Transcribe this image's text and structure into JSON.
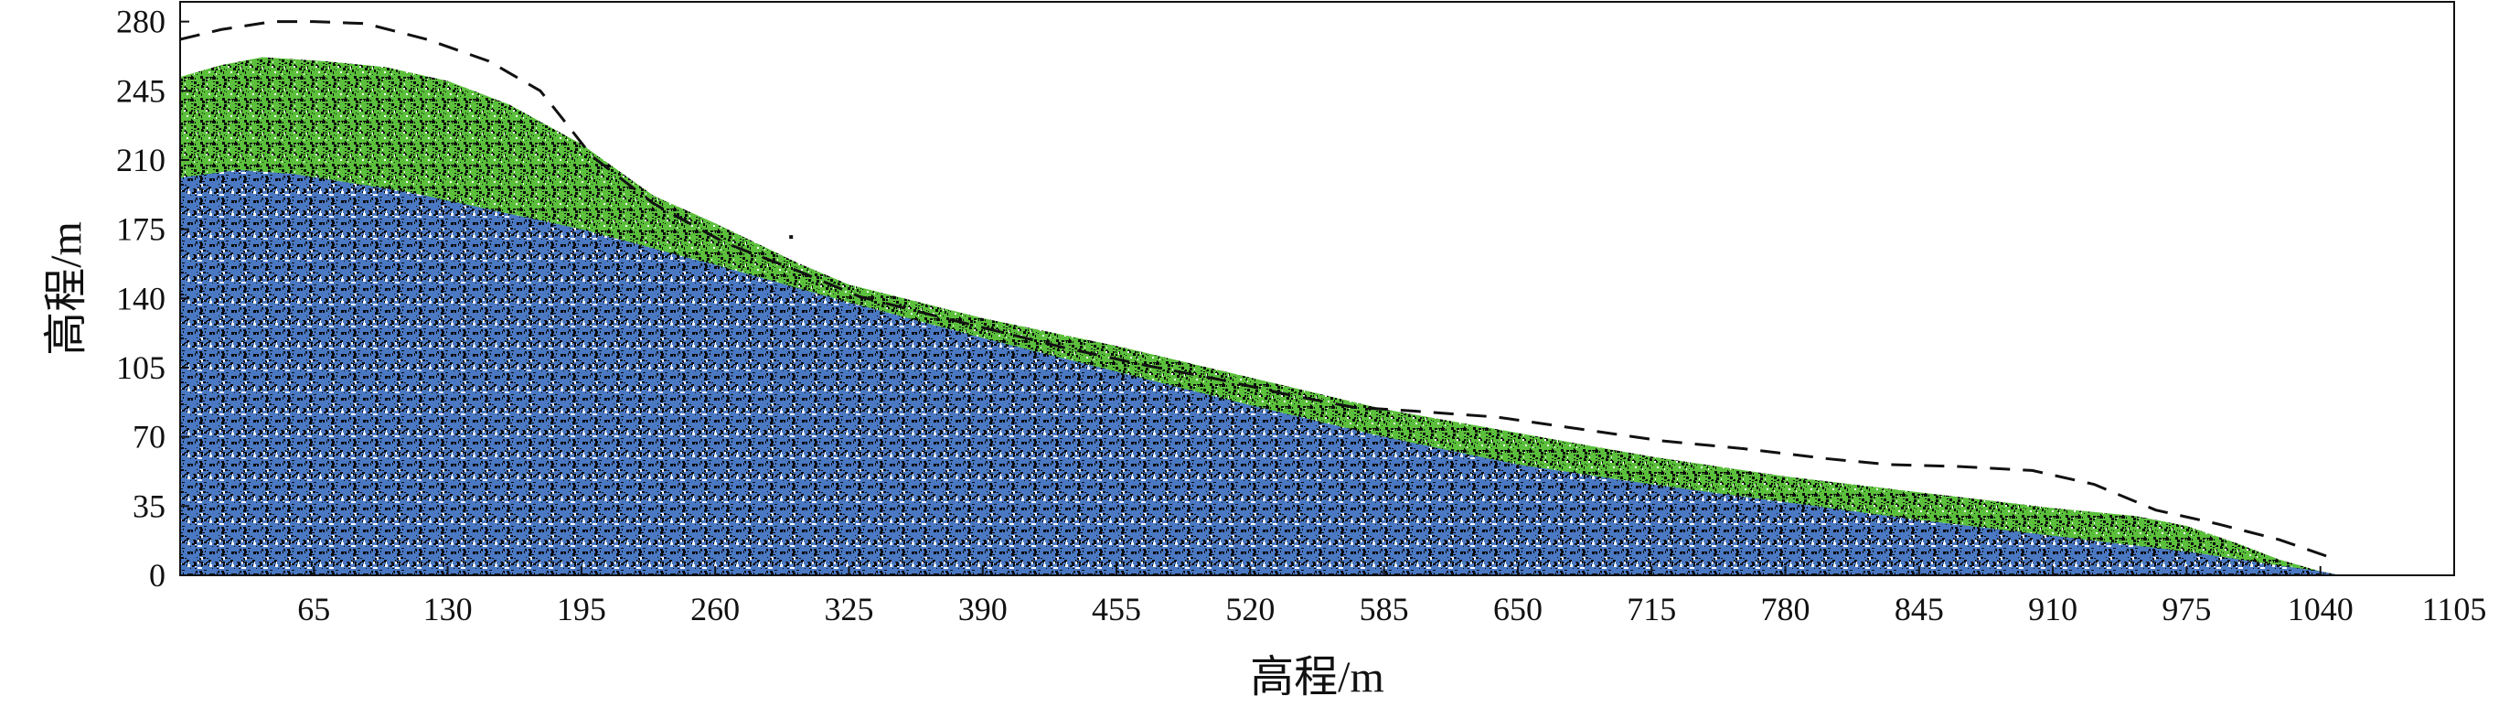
{
  "chart_data": {
    "type": "area",
    "title": "",
    "xlabel": "高程/m",
    "ylabel": "高程/m",
    "xlim": [
      0,
      1105
    ],
    "ylim": [
      0,
      290
    ],
    "x_ticks": [
      65,
      130,
      195,
      260,
      325,
      390,
      455,
      520,
      585,
      650,
      715,
      780,
      845,
      910,
      975,
      1040,
      1105
    ],
    "y_ticks": [
      0,
      35,
      70,
      105,
      140,
      175,
      210,
      245,
      280
    ],
    "grid": false,
    "legend": "none",
    "series": [
      {
        "style": "filled-area",
        "color": "#4a78c2",
        "speckle_color": "#0a0a0a",
        "x": [
          0,
          28,
          55,
          110,
          195,
          260,
          325,
          390,
          455,
          520,
          585,
          650,
          715,
          780,
          845,
          910,
          975,
          1020,
          1040,
          1050
        ],
        "y": [
          201,
          205,
          203,
          194,
          175,
          157,
          138,
          120,
          103,
          86,
          70,
          56,
          46,
          37,
          28,
          20,
          12,
          5,
          2,
          0
        ]
      },
      {
        "style": "filled-area",
        "color": "#5bbf3c",
        "speckle_color": "#0a0a0a",
        "x": [
          0,
          20,
          40,
          70,
          100,
          130,
          160,
          195,
          230,
          260,
          300,
          325,
          390,
          455,
          520,
          585,
          650,
          715,
          780,
          845,
          910,
          950,
          975,
          1000,
          1020,
          1040,
          1050
        ],
        "y": [
          252,
          258,
          262,
          260,
          257,
          250,
          238,
          218,
          192,
          178,
          158,
          147,
          130,
          116,
          100,
          84,
          72,
          60,
          50,
          42,
          34,
          30,
          25,
          16,
          8,
          2,
          0
        ]
      },
      {
        "style": "dashed-line",
        "color": "#111111",
        "x": [
          0,
          20,
          45,
          65,
          90,
          120,
          150,
          175,
          185,
          200,
          230,
          265,
          300,
          330,
          360,
          395,
          430,
          470,
          505,
          540,
          570,
          600,
          640,
          680,
          720,
          760,
          800,
          830,
          865,
          900,
          930,
          960,
          990,
          1020,
          1045
        ],
        "y": [
          271,
          276,
          280,
          280,
          279,
          271,
          260,
          245,
          232,
          212,
          188,
          168,
          154,
          141,
          133,
          124,
          115,
          106,
          99,
          91,
          85,
          83,
          80,
          74,
          68,
          64,
          59,
          56,
          55,
          53,
          46,
          33,
          26,
          18,
          9
        ]
      }
    ],
    "annotations": [
      {
        "type": "dot",
        "x": 296,
        "y": 172
      }
    ]
  }
}
